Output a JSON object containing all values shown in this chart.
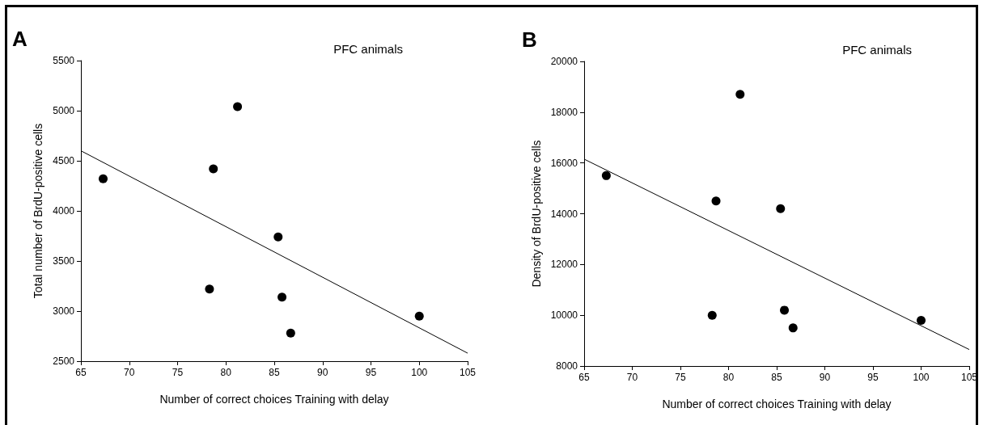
{
  "chart_data": [
    {
      "type": "scatter",
      "title": "A",
      "annotations": [
        "PFC animals"
      ],
      "xlabel": "Number of correct choices Training with delay",
      "ylabel": "Total number of BrdU-positive cells",
      "xlim": [
        65,
        105
      ],
      "xticks": [
        65,
        70,
        75,
        80,
        85,
        90,
        95,
        100,
        105
      ],
      "ylim": [
        2500,
        5500
      ],
      "yticks": [
        2500,
        3000,
        3500,
        4000,
        4500,
        5000,
        5500
      ],
      "marker": "circle",
      "series": [
        {
          "color": "#000000",
          "x": [
            67.3,
            78.3,
            78.7,
            81.2,
            85.4,
            85.8,
            86.7,
            100
          ],
          "values": [
            4320,
            3220,
            4420,
            5040,
            3740,
            3140,
            2780,
            2950
          ]
        },
        {
          "type": "line",
          "color": "#000000",
          "marker": "none",
          "x": [
            65,
            105
          ],
          "values": [
            4600,
            2580
          ]
        }
      ]
    },
    {
      "type": "scatter",
      "title": "B",
      "annotations": [
        "PFC animals"
      ],
      "xlabel": "Number of correct choices Training with delay",
      "ylabel": "Density of BrdU-positive cells",
      "xlim": [
        65,
        105
      ],
      "xticks": [
        65,
        70,
        75,
        80,
        85,
        90,
        95,
        100,
        105
      ],
      "ylim": [
        8000,
        20000
      ],
      "yticks": [
        8000,
        10000,
        12000,
        14000,
        16000,
        18000,
        20000
      ],
      "marker": "circle",
      "series": [
        {
          "color": "#000000",
          "x": [
            67.3,
            78.3,
            78.7,
            81.2,
            85.4,
            85.8,
            86.7,
            100
          ],
          "values": [
            15500,
            10000,
            14500,
            18700,
            14200,
            10200,
            9500,
            9800
          ]
        },
        {
          "type": "line",
          "color": "#000000",
          "marker": "none",
          "x": [
            65,
            105
          ],
          "values": [
            16150,
            8650
          ]
        }
      ]
    }
  ]
}
